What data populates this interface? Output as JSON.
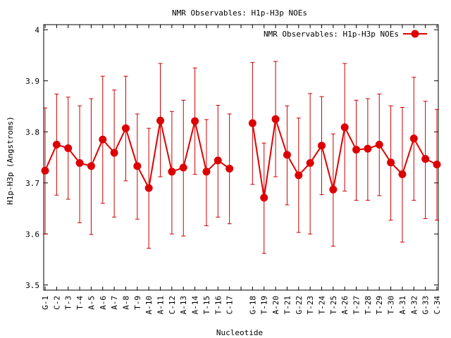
{
  "chart_data": {
    "type": "line",
    "title": "NMR Observables: H1p-H3p NOEs",
    "xlabel": "Nucleotide",
    "ylabel": "H1p-H3p (Angstroms)",
    "ylim": [
      3.49,
      4.01
    ],
    "yticks": [
      "3.5",
      "3.6",
      "3.7",
      "3.8",
      "3.9",
      "4"
    ],
    "legend": {
      "label": "NMR Observables: H1p-H3p NOEs",
      "position": "top-right"
    },
    "series_color": "#dd0000",
    "error_color": "#cc0000",
    "series": [
      {
        "name": "NMR Observables: H1p-H3p NOEs",
        "values": [
          3.724,
          3.775,
          3.768,
          3.739,
          3.733,
          3.785,
          3.759,
          3.807,
          3.733,
          3.69,
          3.822,
          3.722,
          3.73,
          3.821,
          3.722,
          3.744,
          3.728,
          null,
          3.817,
          3.671,
          3.825,
          3.755,
          3.715,
          3.739,
          3.773,
          3.687,
          3.809,
          3.765,
          3.767,
          3.775,
          3.74,
          3.717,
          3.787,
          3.747,
          3.736
        ],
        "err_low": [
          3.6,
          3.676,
          3.668,
          3.622,
          3.599,
          3.66,
          3.633,
          3.704,
          3.629,
          3.572,
          3.712,
          3.6,
          3.596,
          3.717,
          3.616,
          3.633,
          3.62,
          null,
          3.697,
          3.562,
          3.712,
          3.657,
          3.603,
          3.6,
          3.677,
          3.576,
          3.684,
          3.666,
          3.666,
          3.675,
          3.627,
          3.584,
          3.666,
          3.63,
          3.627
        ],
        "err_high": [
          3.847,
          3.874,
          3.868,
          3.851,
          3.865,
          3.909,
          3.882,
          3.909,
          3.835,
          3.807,
          3.934,
          3.84,
          3.862,
          3.925,
          3.824,
          3.852,
          3.835,
          null,
          3.936,
          3.778,
          3.938,
          3.851,
          3.827,
          3.875,
          3.869,
          3.796,
          3.934,
          3.862,
          3.865,
          3.874,
          3.851,
          3.848,
          3.907,
          3.86,
          3.844
        ]
      }
    ],
    "categories": [
      "G-1",
      "C-2",
      "T-3",
      "T-4",
      "A-5",
      "A-6",
      "A-7",
      "A-8",
      "T-9",
      "A-10",
      "A-11",
      "C-12",
      "A-13",
      "A-14",
      "T-15",
      "T-16",
      "C-17",
      "",
      "G-18",
      "T-19",
      "A-20",
      "T-21",
      "G-22",
      "T-23",
      "T-24",
      "T-25",
      "A-26",
      "T-27",
      "T-28",
      "T-29",
      "T-30",
      "A-31",
      "A-32",
      "G-33",
      "C-34"
    ]
  }
}
